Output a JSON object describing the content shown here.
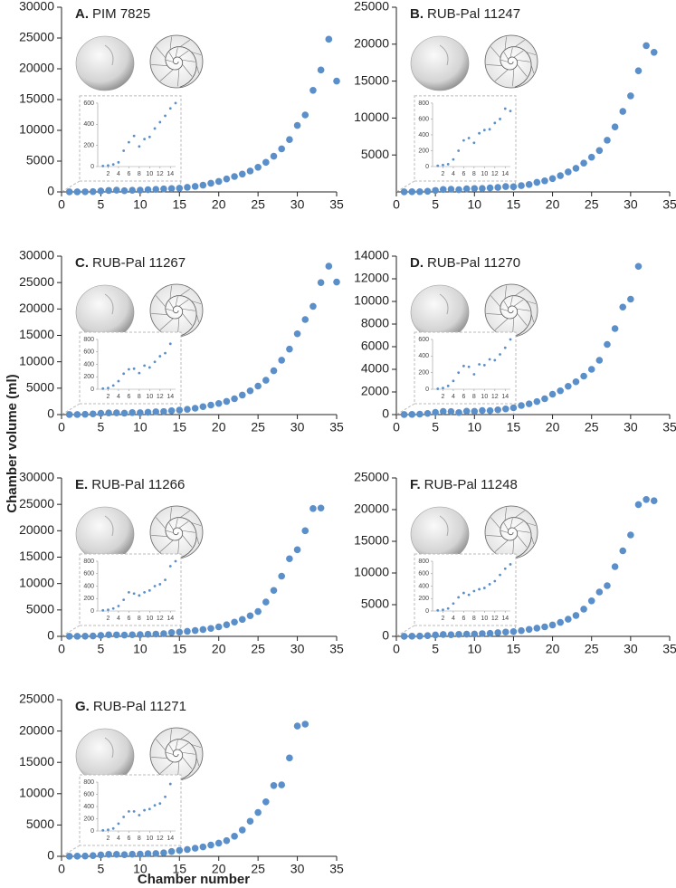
{
  "ylabel": "Chamber volume (ml)",
  "xlabel": "Chamber number",
  "chart_data": [
    {
      "type": "scatter",
      "label": "A.",
      "title": "PIM 7825",
      "color": "#5b8fc9",
      "x": [
        1,
        2,
        3,
        4,
        5,
        6,
        7,
        8,
        9,
        10,
        11,
        12,
        13,
        14,
        15,
        16,
        17,
        18,
        19,
        20,
        21,
        22,
        23,
        24,
        25,
        26,
        27,
        28,
        29,
        30,
        31,
        32,
        33,
        34,
        35
      ],
      "values": [
        5,
        10,
        20,
        40,
        150,
        230,
        290,
        190,
        260,
        280,
        360,
        420,
        480,
        550,
        600,
        750,
        900,
        1100,
        1400,
        1700,
        2100,
        2500,
        2900,
        3400,
        4000,
        4800,
        5800,
        7000,
        8500,
        10800,
        12500,
        16500,
        19800,
        24800,
        18000
      ],
      "xlim": [
        0,
        35
      ],
      "xticks": [
        0,
        5,
        10,
        15,
        20,
        25,
        30,
        35
      ],
      "ylim": [
        0,
        30000
      ],
      "yticks": [
        0,
        5000,
        10000,
        15000,
        20000,
        25000,
        30000
      ],
      "inset": {
        "xlim": [
          0,
          15
        ],
        "xticks": [
          2,
          4,
          6,
          8,
          10,
          12,
          14
        ],
        "ylim": [
          0,
          600
        ],
        "yticks": [
          0,
          200,
          400,
          600
        ]
      }
    },
    {
      "type": "scatter",
      "label": "B.",
      "title": "RUB-Pal 11247",
      "color": "#5b8fc9",
      "x": [
        1,
        2,
        3,
        4,
        5,
        6,
        7,
        8,
        9,
        10,
        11,
        12,
        13,
        14,
        15,
        16,
        17,
        18,
        19,
        20,
        21,
        22,
        23,
        24,
        25,
        26,
        27,
        28,
        29,
        30,
        31,
        32,
        33
      ],
      "values": [
        10,
        20,
        30,
        90,
        200,
        330,
        360,
        300,
        420,
        460,
        470,
        550,
        600,
        730,
        700,
        850,
        1000,
        1300,
        1500,
        1800,
        2200,
        2700,
        3200,
        3900,
        4700,
        5600,
        7000,
        8800,
        10900,
        13000,
        16400,
        19800,
        18900
      ],
      "xlim": [
        0,
        35
      ],
      "xticks": [
        0,
        5,
        10,
        15,
        20,
        25,
        30,
        35
      ],
      "ylim": [
        0,
        25000
      ],
      "yticks": [
        5000,
        10000,
        15000,
        20000,
        25000
      ],
      "inset": {
        "xlim": [
          0,
          15
        ],
        "xticks": [
          2,
          4,
          6,
          8,
          10,
          12,
          14
        ],
        "ylim": [
          0,
          800
        ],
        "yticks": [
          0,
          200,
          400,
          600,
          800
        ]
      }
    },
    {
      "type": "scatter",
      "label": "C.",
      "title": "RUB-Pal 11267",
      "color": "#5b8fc9",
      "x": [
        1,
        2,
        3,
        4,
        5,
        6,
        7,
        8,
        9,
        10,
        11,
        12,
        13,
        14,
        15,
        16,
        17,
        18,
        19,
        20,
        21,
        22,
        23,
        24,
        25,
        26,
        27,
        28,
        29,
        30,
        31,
        32,
        33,
        34,
        35
      ],
      "values": [
        10,
        20,
        60,
        130,
        250,
        320,
        330,
        260,
        380,
        350,
        440,
        530,
        580,
        730,
        850,
        1000,
        1200,
        1500,
        1800,
        2100,
        2500,
        3000,
        3700,
        4500,
        5400,
        6500,
        8300,
        10300,
        12400,
        15300,
        18000,
        20500,
        25000,
        28100,
        25100
      ],
      "xlim": [
        0,
        35
      ],
      "xticks": [
        0,
        5,
        10,
        15,
        20,
        25,
        30,
        35
      ],
      "ylim": [
        0,
        30000
      ],
      "yticks": [
        0,
        5000,
        10000,
        15000,
        20000,
        25000,
        30000
      ],
      "inset": {
        "xlim": [
          0,
          15
        ],
        "xticks": [
          2,
          4,
          6,
          8,
          10,
          12,
          14
        ],
        "ylim": [
          0,
          800
        ],
        "yticks": [
          0,
          200,
          400,
          600,
          800
        ]
      }
    },
    {
      "type": "scatter",
      "label": "D.",
      "title": "RUB-Pal 11270",
      "color": "#5b8fc9",
      "x": [
        1,
        2,
        3,
        4,
        5,
        6,
        7,
        8,
        9,
        10,
        11,
        12,
        13,
        14,
        15,
        16,
        17,
        18,
        19,
        20,
        21,
        22,
        23,
        24,
        25,
        26,
        27,
        28,
        29,
        30,
        31
      ],
      "values": [
        5,
        15,
        40,
        100,
        200,
        280,
        270,
        180,
        300,
        290,
        360,
        350,
        420,
        500,
        600,
        800,
        950,
        1150,
        1400,
        1800,
        2100,
        2500,
        2900,
        3400,
        4000,
        4800,
        6200,
        7600,
        9500,
        10200,
        13100
      ],
      "xlim": [
        0,
        35
      ],
      "xticks": [
        0,
        5,
        10,
        15,
        20,
        25,
        30,
        35
      ],
      "ylim": [
        0,
        14000
      ],
      "yticks": [
        0,
        2000,
        4000,
        6000,
        8000,
        10000,
        12000,
        14000
      ],
      "inset": {
        "xlim": [
          0,
          15
        ],
        "xticks": [
          2,
          4,
          6,
          8,
          10,
          12,
          14
        ],
        "ylim": [
          0,
          600
        ],
        "yticks": [
          0,
          200,
          400,
          600
        ]
      }
    },
    {
      "type": "scatter",
      "label": "E.",
      "title": "RUB-Pal 11266",
      "color": "#5b8fc9",
      "x": [
        1,
        2,
        3,
        4,
        5,
        6,
        7,
        8,
        9,
        10,
        11,
        12,
        13,
        14,
        15,
        16,
        17,
        18,
        19,
        20,
        21,
        22,
        23,
        24,
        25,
        26,
        27,
        28,
        29,
        30,
        31,
        32,
        33
      ],
      "values": [
        10,
        20,
        40,
        80,
        180,
        300,
        280,
        250,
        300,
        330,
        400,
        430,
        500,
        720,
        800,
        950,
        1100,
        1300,
        1500,
        1800,
        2200,
        2700,
        3200,
        3900,
        4700,
        6500,
        8700,
        11400,
        14700,
        16400,
        20000,
        24200,
        24300
      ],
      "xlim": [
        0,
        35
      ],
      "xticks": [
        0,
        5,
        10,
        15,
        20,
        25,
        30,
        35
      ],
      "ylim": [
        0,
        30000
      ],
      "yticks": [
        0,
        5000,
        10000,
        15000,
        20000,
        25000,
        30000
      ],
      "inset": {
        "xlim": [
          0,
          15
        ],
        "xticks": [
          2,
          4,
          6,
          8,
          10,
          12,
          14
        ],
        "ylim": [
          0,
          800
        ],
        "yticks": [
          0,
          200,
          400,
          600,
          800
        ]
      }
    },
    {
      "type": "scatter",
      "label": "F.",
      "title": "RUB-Pal 11248",
      "color": "#5b8fc9",
      "x": [
        1,
        2,
        3,
        4,
        5,
        6,
        7,
        8,
        9,
        10,
        11,
        12,
        13,
        14,
        15,
        16,
        17,
        18,
        19,
        20,
        21,
        22,
        23,
        24,
        25,
        26,
        27,
        28,
        29,
        30,
        31,
        32,
        33
      ],
      "values": [
        10,
        20,
        40,
        120,
        220,
        290,
        260,
        320,
        350,
        370,
        430,
        480,
        580,
        680,
        750,
        900,
        1100,
        1300,
        1500,
        1800,
        2200,
        2700,
        3300,
        4300,
        5600,
        7000,
        8000,
        11000,
        13500,
        16000,
        20800,
        21600,
        21400
      ],
      "xlim": [
        0,
        35
      ],
      "xticks": [
        0,
        5,
        10,
        15,
        20,
        25,
        30,
        35
      ],
      "ylim": [
        0,
        25000
      ],
      "yticks": [
        0,
        5000,
        10000,
        15000,
        20000,
        25000
      ],
      "inset": {
        "xlim": [
          0,
          15
        ],
        "xticks": [
          2,
          4,
          6,
          8,
          10,
          12,
          14
        ],
        "ylim": [
          0,
          800
        ],
        "yticks": [
          0,
          200,
          400,
          600,
          800
        ]
      }
    },
    {
      "type": "scatter",
      "label": "G.",
      "title": "RUB-Pal 11271",
      "color": "#5b8fc9",
      "x": [
        1,
        2,
        3,
        4,
        5,
        6,
        7,
        8,
        9,
        10,
        11,
        12,
        13,
        14,
        15,
        16,
        17,
        18,
        19,
        20,
        21,
        22,
        23,
        24,
        25,
        26,
        27,
        28,
        29,
        30,
        31
      ],
      "values": [
        10,
        20,
        40,
        120,
        230,
        320,
        320,
        260,
        340,
        360,
        420,
        450,
        560,
        770,
        950,
        1100,
        1300,
        1500,
        1800,
        2100,
        2500,
        3200,
        4200,
        5600,
        7000,
        8700,
        11300,
        11400,
        15700,
        20800,
        21100
      ],
      "xlim": [
        0,
        35
      ],
      "xticks": [
        0,
        5,
        10,
        15,
        20,
        25,
        30,
        35
      ],
      "ylim": [
        0,
        25000
      ],
      "yticks": [
        0,
        5000,
        10000,
        15000,
        20000,
        25000
      ],
      "inset": {
        "xlim": [
          0,
          15
        ],
        "xticks": [
          2,
          4,
          6,
          8,
          10,
          12,
          14
        ],
        "ylim": [
          0,
          800
        ],
        "yticks": [
          0,
          200,
          400,
          600,
          800
        ]
      }
    }
  ]
}
